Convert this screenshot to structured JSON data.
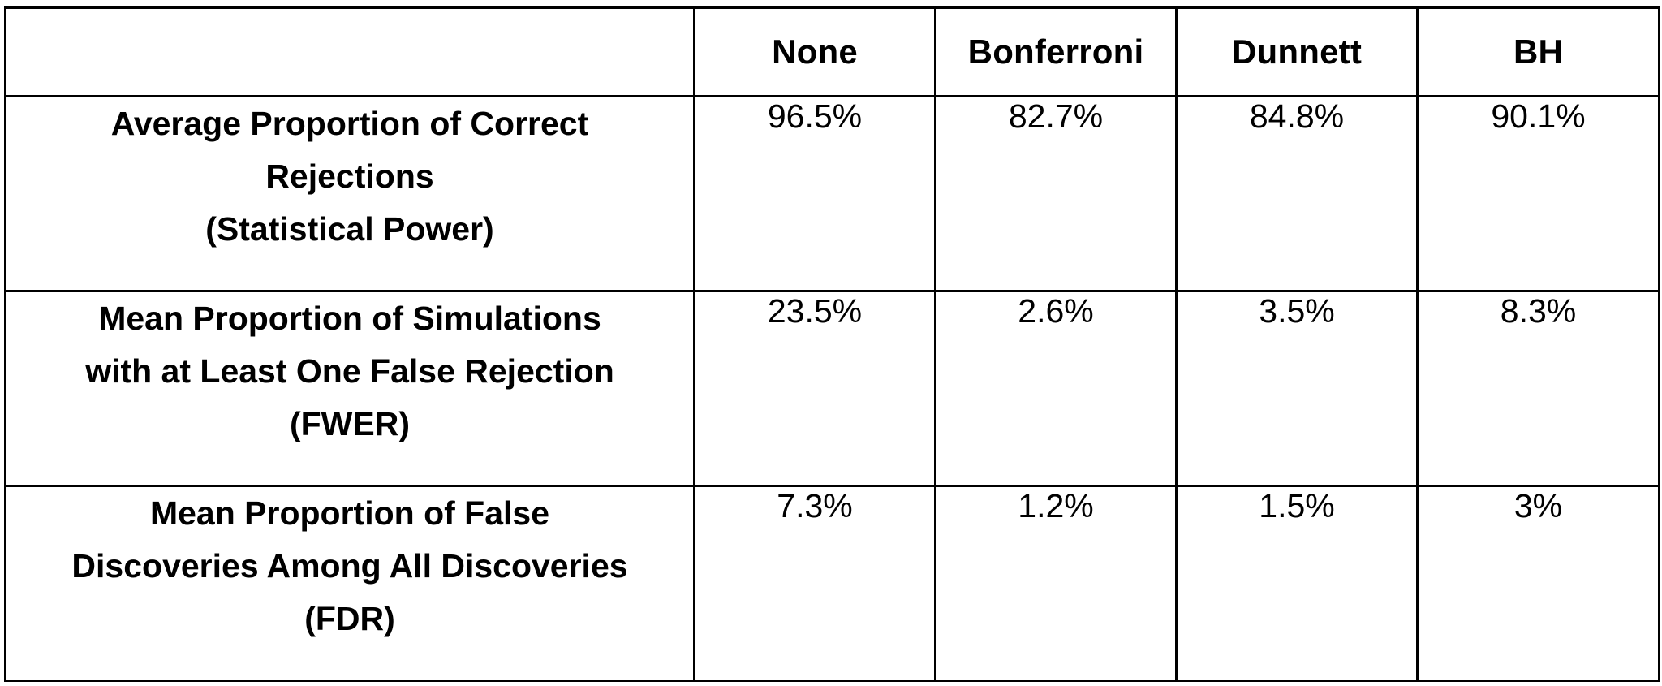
{
  "table": {
    "corner": "",
    "columns": [
      "None",
      "Bonferroni",
      "Dunnett",
      "BH"
    ],
    "rows": [
      {
        "label_lines": [
          "Average Proportion of Correct",
          "Rejections",
          "(Statistical Power)"
        ],
        "values": [
          "96.5%",
          "82.7%",
          "84.8%",
          "90.1%"
        ]
      },
      {
        "label_lines": [
          "Mean Proportion of Simulations",
          "with at Least One False Rejection",
          "(FWER)"
        ],
        "values": [
          "23.5%",
          "2.6%",
          "3.5%",
          "8.3%"
        ]
      },
      {
        "label_lines": [
          "Mean Proportion of False",
          "Discoveries Among All Discoveries",
          "(FDR)"
        ],
        "values": [
          "7.3%",
          "1.2%",
          "1.5%",
          "3%"
        ]
      }
    ]
  }
}
